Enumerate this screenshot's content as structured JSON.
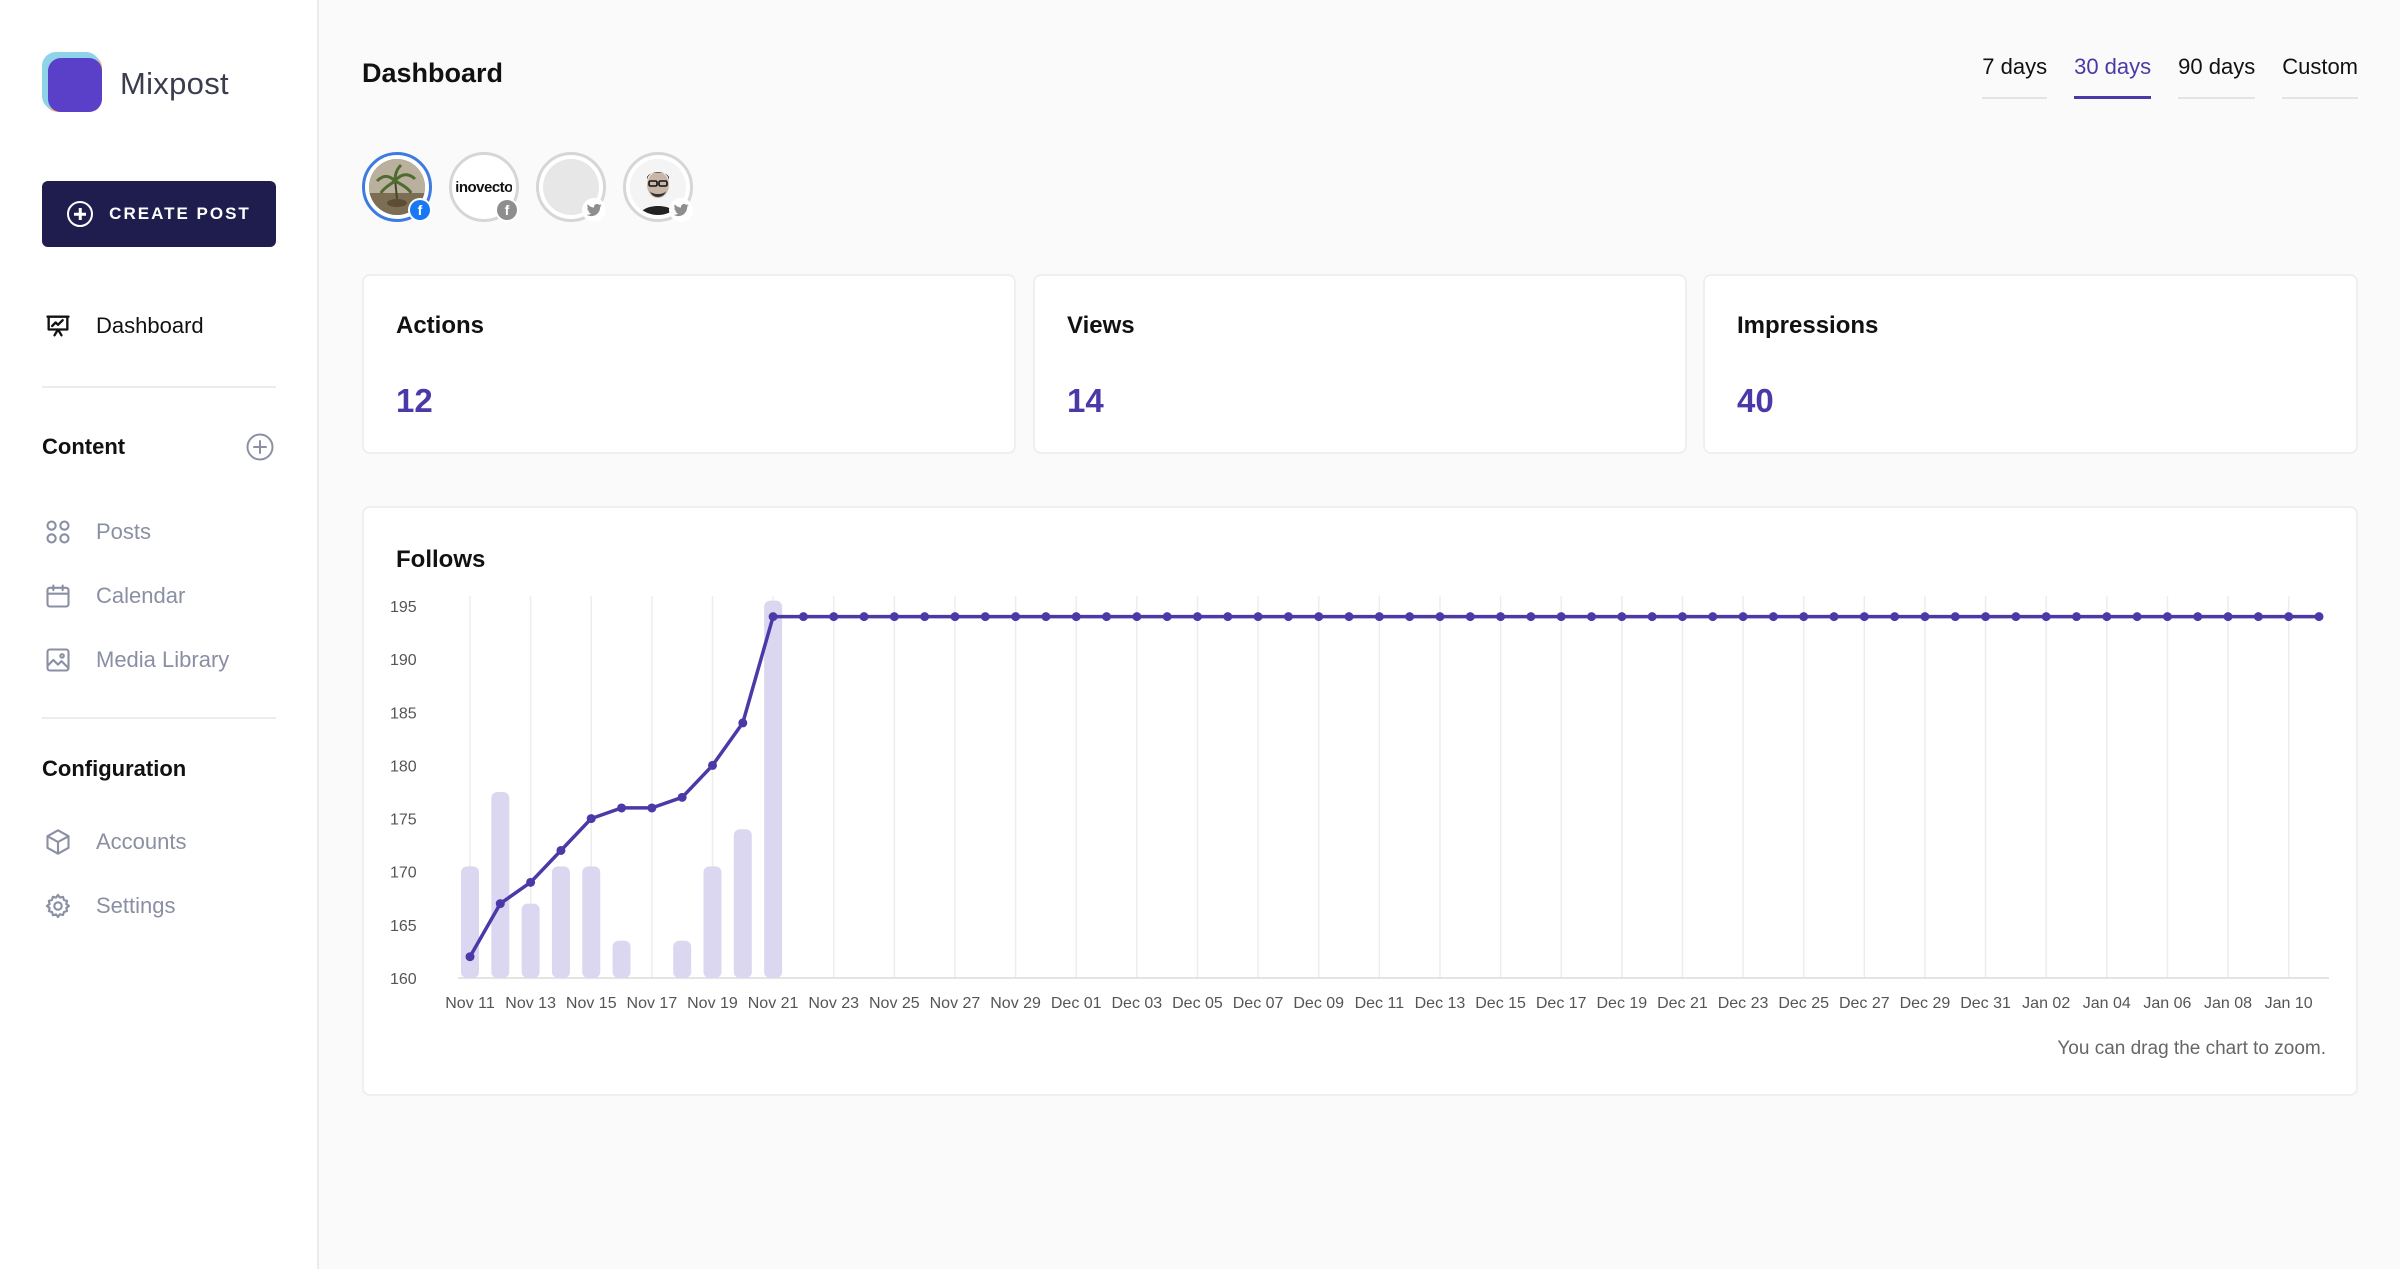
{
  "app": {
    "name": "Mixpost"
  },
  "sidebar": {
    "create_label": "CREATE POST",
    "dashboard_label": "Dashboard",
    "content_title": "Content",
    "content_items": [
      {
        "label": "Posts",
        "icon": "grid-icon"
      },
      {
        "label": "Calendar",
        "icon": "calendar-icon"
      },
      {
        "label": "Media Library",
        "icon": "image-icon"
      }
    ],
    "config_title": "Configuration",
    "config_items": [
      {
        "label": "Accounts",
        "icon": "cube-icon"
      },
      {
        "label": "Settings",
        "icon": "gear-icon"
      }
    ]
  },
  "header": {
    "title": "Dashboard",
    "ranges": [
      "7 days",
      "30 days",
      "90 days",
      "Custom"
    ],
    "active_range": "30 days"
  },
  "accounts": [
    {
      "network": "facebook",
      "avatar_text": "",
      "active": true
    },
    {
      "network": "facebook",
      "avatar_text": "inovecto",
      "active": false
    },
    {
      "network": "twitter",
      "avatar_text": "",
      "active": false
    },
    {
      "network": "twitter",
      "avatar_text": "",
      "active": false
    }
  ],
  "stats": [
    {
      "label": "Actions",
      "value": "12"
    },
    {
      "label": "Views",
      "value": "14"
    },
    {
      "label": "Impressions",
      "value": "40"
    }
  ],
  "colors": {
    "accent": "#4a3aa8",
    "sidebar_button": "#1f1c4e",
    "bar": "#dcd7f1",
    "facebook": "#1877f2",
    "badge_gray": "#8e8e8e"
  },
  "chart": {
    "title": "Follows",
    "note": "You can drag the chart to zoom."
  },
  "chart_data": {
    "type": "line",
    "title": "Follows",
    "x_tick_labels": [
      "Nov 11",
      "Nov 13",
      "Nov 15",
      "Nov 17",
      "Nov 19",
      "Nov 21",
      "Nov 23",
      "Nov 25",
      "Nov 27",
      "Nov 29",
      "Dec 01",
      "Dec 03",
      "Dec 05",
      "Dec 07",
      "Dec 09",
      "Dec 11",
      "Dec 13",
      "Dec 15",
      "Dec 17",
      "Dec 19",
      "Dec 21",
      "Dec 23",
      "Dec 25",
      "Dec 27",
      "Dec 29",
      "Dec 31",
      "Jan 02",
      "Jan 04",
      "Jan 06",
      "Jan 08",
      "Jan 10"
    ],
    "y_ticks": [
      160,
      165,
      170,
      175,
      180,
      185,
      190,
      195
    ],
    "ylim": [
      160,
      195
    ],
    "line_values": [
      162,
      167,
      169,
      172,
      175,
      176,
      176,
      177,
      180,
      184,
      194,
      194,
      194,
      194,
      194,
      194,
      194,
      194,
      194,
      194,
      194,
      194,
      194,
      194,
      194,
      194,
      194,
      194,
      194,
      194,
      194,
      194,
      194,
      194,
      194,
      194,
      194,
      194,
      194,
      194,
      194,
      194,
      194,
      194,
      194,
      194,
      194,
      194,
      194,
      194,
      194,
      194,
      194,
      194,
      194,
      194,
      194,
      194,
      194,
      194,
      194,
      194
    ],
    "bar_values": [
      170.5,
      177.5,
      167,
      170.5,
      170.5,
      163.5,
      null,
      163.5,
      170.5,
      174,
      195.5
    ],
    "grid": "vertical"
  }
}
